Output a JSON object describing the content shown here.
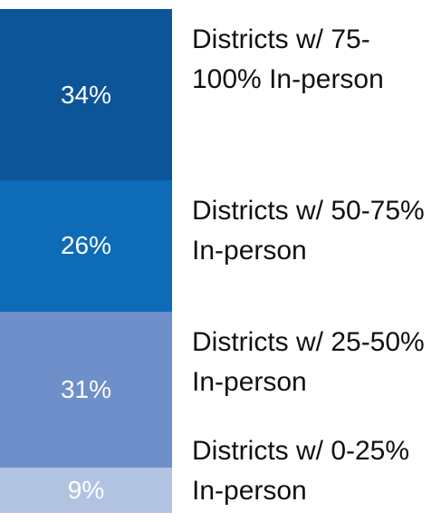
{
  "chart_data": {
    "type": "stacked_bar",
    "categories": [
      "Districts w/ 75-100% In-person",
      "Districts w/ 50-75% In-person",
      "Districts w/ 25-50% In-person",
      "Districts w/ 0-25% In-person"
    ],
    "values": [
      34,
      26,
      31,
      9
    ],
    "value_labels": [
      "34%",
      "26%",
      "31%",
      "9%"
    ],
    "colors": [
      "#0c5599",
      "#0e6bb8",
      "#6f8fca",
      "#b2c3e2"
    ]
  }
}
